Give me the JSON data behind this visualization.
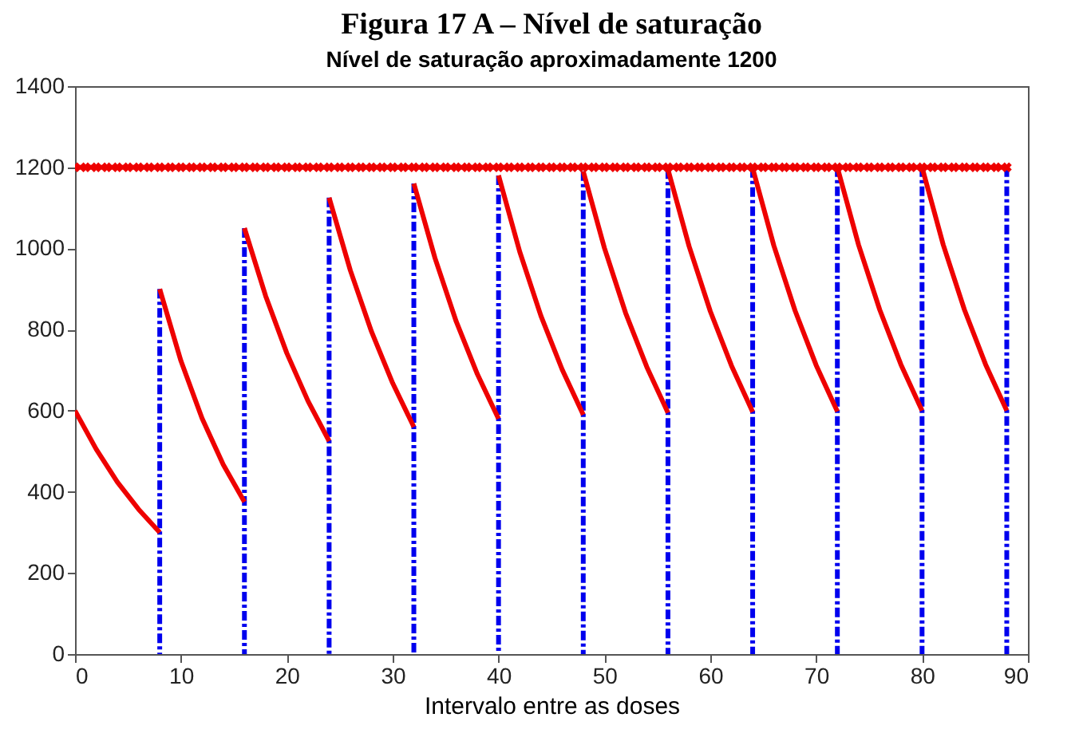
{
  "chart_data": {
    "type": "line",
    "title": "Figura 17 A – Nível de saturação",
    "subtitle": "Nível de saturação aproximadamente 1200",
    "xlabel": "Intervalo entre as doses",
    "xlim": [
      0,
      90
    ],
    "xticks": [
      0,
      10,
      20,
      30,
      40,
      50,
      60,
      70,
      80,
      90
    ],
    "ylim": [
      0,
      1400
    ],
    "yticks": [
      0,
      200,
      400,
      600,
      800,
      1000,
      1200,
      1400
    ],
    "grid": false,
    "series": [
      {
        "color": "#0000ee",
        "line_style": "dashed",
        "x": [
          8,
          8
        ],
        "values": [
          900,
          0
        ]
      },
      {
        "color": "#0000ee",
        "line_style": "dashed",
        "x": [
          16,
          16
        ],
        "values": [
          1050,
          0
        ]
      },
      {
        "color": "#0000ee",
        "line_style": "dashed",
        "x": [
          24,
          24
        ],
        "values": [
          1125,
          0
        ]
      },
      {
        "color": "#0000ee",
        "line_style": "dashed",
        "x": [
          32,
          32
        ],
        "values": [
          1160,
          0
        ]
      },
      {
        "color": "#0000ee",
        "line_style": "dashed",
        "x": [
          40,
          40
        ],
        "values": [
          1180,
          0
        ]
      },
      {
        "color": "#0000ee",
        "line_style": "dashed",
        "x": [
          48,
          48
        ],
        "values": [
          1190,
          0
        ]
      },
      {
        "color": "#0000ee",
        "line_style": "dashed",
        "x": [
          56,
          56
        ],
        "values": [
          1195,
          0
        ]
      },
      {
        "color": "#0000ee",
        "line_style": "dashed",
        "x": [
          64,
          64
        ],
        "values": [
          1198,
          0
        ]
      },
      {
        "color": "#0000ee",
        "line_style": "dashed",
        "x": [
          72,
          72
        ],
        "values": [
          1200,
          0
        ]
      },
      {
        "color": "#0000ee",
        "line_style": "dashed",
        "x": [
          80,
          80
        ],
        "values": [
          1200,
          0
        ]
      },
      {
        "color": "#0000ee",
        "line_style": "dashed",
        "x": [
          88,
          88
        ],
        "values": [
          1200,
          0
        ]
      },
      {
        "color": "#ee0000",
        "x": [
          0,
          2,
          4,
          6,
          8
        ],
        "values": [
          600,
          505,
          424,
          357,
          300
        ]
      },
      {
        "color": "#ee0000",
        "x": [
          8,
          10,
          12,
          14,
          16
        ],
        "values": [
          900,
          723,
          581,
          467,
          375
        ]
      },
      {
        "color": "#ee0000",
        "x": [
          16,
          18,
          20,
          22,
          24
        ],
        "values": [
          1050,
          883,
          742,
          624,
          525
        ]
      },
      {
        "color": "#ee0000",
        "x": [
          24,
          26,
          28,
          30,
          32
        ],
        "values": [
          1125,
          946,
          795,
          668,
          560
        ]
      },
      {
        "color": "#ee0000",
        "x": [
          32,
          34,
          36,
          38,
          40
        ],
        "values": [
          1160,
          976,
          820,
          690,
          580
        ]
      },
      {
        "color": "#ee0000",
        "x": [
          40,
          42,
          44,
          46,
          48
        ],
        "values": [
          1180,
          992,
          834,
          702,
          590
        ]
      },
      {
        "color": "#ee0000",
        "x": [
          48,
          50,
          52,
          54,
          56
        ],
        "values": [
          1190,
          1001,
          841,
          708,
          595
        ]
      },
      {
        "color": "#ee0000",
        "x": [
          56,
          58,
          60,
          62,
          64
        ],
        "values": [
          1195,
          1005,
          845,
          711,
          597
        ]
      },
      {
        "color": "#ee0000",
        "x": [
          64,
          66,
          68,
          70,
          72
        ],
        "values": [
          1198,
          1007,
          847,
          712,
          598
        ]
      },
      {
        "color": "#ee0000",
        "x": [
          72,
          74,
          76,
          78,
          80
        ],
        "values": [
          1200,
          1009,
          849,
          714,
          600
        ]
      },
      {
        "color": "#ee0000",
        "x": [
          80,
          82,
          84,
          86,
          88
        ],
        "values": [
          1200,
          1009,
          849,
          714,
          600
        ]
      },
      {
        "color": "#ee0000",
        "marker": "cross",
        "x": [
          0,
          1,
          2,
          3,
          4,
          5,
          6,
          7,
          8,
          9,
          10,
          11,
          12,
          13,
          14,
          15,
          16,
          17,
          18,
          19,
          20,
          21,
          22,
          23,
          24,
          25,
          26,
          27,
          28,
          29,
          30,
          31,
          32,
          33,
          34,
          35,
          36,
          37,
          38,
          39,
          40,
          41,
          42,
          43,
          44,
          45,
          46,
          47,
          48,
          49,
          50,
          51,
          52,
          53,
          54,
          55,
          56,
          57,
          58,
          59,
          60,
          61,
          62,
          63,
          64,
          65,
          66,
          67,
          68,
          69,
          70,
          71,
          72,
          73,
          74,
          75,
          76,
          77,
          78,
          79,
          80,
          81,
          82,
          83,
          84,
          85,
          86,
          87,
          88
        ],
        "values": [
          1200,
          1200,
          1200,
          1200,
          1200,
          1200,
          1200,
          1200,
          1200,
          1200,
          1200,
          1200,
          1200,
          1200,
          1200,
          1200,
          1200,
          1200,
          1200,
          1200,
          1200,
          1200,
          1200,
          1200,
          1200,
          1200,
          1200,
          1200,
          1200,
          1200,
          1200,
          1200,
          1200,
          1200,
          1200,
          1200,
          1200,
          1200,
          1200,
          1200,
          1200,
          1200,
          1200,
          1200,
          1200,
          1200,
          1200,
          1200,
          1200,
          1200,
          1200,
          1200,
          1200,
          1200,
          1200,
          1200,
          1200,
          1200,
          1200,
          1200,
          1200,
          1200,
          1200,
          1200,
          1200,
          1200,
          1200,
          1200,
          1200,
          1200,
          1200,
          1200,
          1200,
          1200,
          1200,
          1200,
          1200,
          1200,
          1200,
          1200,
          1200,
          1200,
          1200,
          1200,
          1200,
          1200,
          1200,
          1200,
          1200
        ]
      }
    ]
  }
}
